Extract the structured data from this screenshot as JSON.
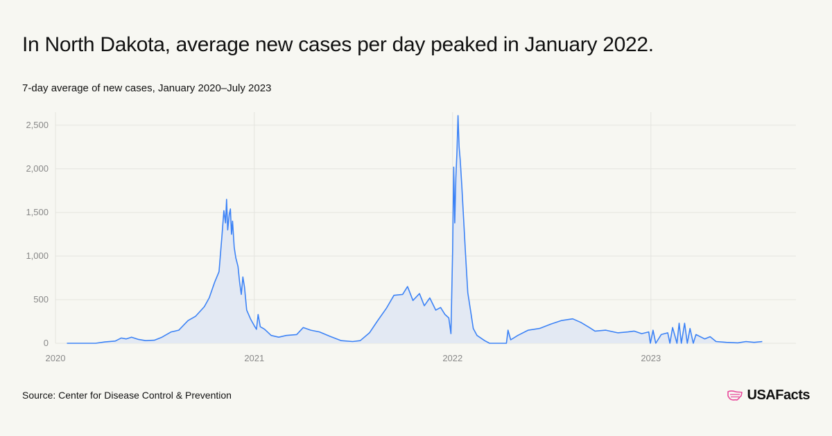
{
  "header": {
    "title": "In North Dakota, average new cases per day peaked in January 2022.",
    "subtitle": "7-day average of new cases, January 2020–July 2023"
  },
  "footer": {
    "source": "Source: Center for Disease Control & Prevention",
    "logo_text": "USAFacts",
    "logo_icon": "us-map-flag-icon"
  },
  "colors": {
    "line": "#3b82f6",
    "area": "#e3e9f3",
    "grid": "#e4e4df",
    "logo_accent": "#e8479a"
  },
  "chart_data": {
    "type": "area",
    "title": "",
    "xlabel": "",
    "ylabel": "",
    "ylim": [
      0,
      2650
    ],
    "xlim": [
      "2020-01-01",
      "2023-09-25"
    ],
    "grid": true,
    "legend": "none",
    "y_ticks": [
      {
        "value": 0,
        "label": "0"
      },
      {
        "value": 500,
        "label": "500"
      },
      {
        "value": 1000,
        "label": "1,000"
      },
      {
        "value": 1500,
        "label": "1,500"
      },
      {
        "value": 2000,
        "label": "2,000"
      },
      {
        "value": 2500,
        "label": "2,500"
      }
    ],
    "x_ticks": [
      {
        "value": "2020-01-01",
        "label": "2020"
      },
      {
        "value": "2021-01-01",
        "label": "2021"
      },
      {
        "value": "2022-01-01",
        "label": "2022"
      },
      {
        "value": "2023-01-01",
        "label": "2023"
      }
    ],
    "series": [
      {
        "name": "",
        "points": [
          [
            "2020-01-22",
            0
          ],
          [
            "2020-03-15",
            0
          ],
          [
            "2020-04-01",
            15
          ],
          [
            "2020-04-20",
            25
          ],
          [
            "2020-05-01",
            60
          ],
          [
            "2020-05-10",
            50
          ],
          [
            "2020-05-20",
            70
          ],
          [
            "2020-06-01",
            45
          ],
          [
            "2020-06-15",
            30
          ],
          [
            "2020-07-01",
            35
          ],
          [
            "2020-07-15",
            70
          ],
          [
            "2020-08-01",
            130
          ],
          [
            "2020-08-15",
            150
          ],
          [
            "2020-09-01",
            260
          ],
          [
            "2020-09-15",
            310
          ],
          [
            "2020-10-01",
            420
          ],
          [
            "2020-10-10",
            520
          ],
          [
            "2020-10-20",
            700
          ],
          [
            "2020-10-28",
            820
          ],
          [
            "2020-11-02",
            1200
          ],
          [
            "2020-11-06",
            1520
          ],
          [
            "2020-11-09",
            1380
          ],
          [
            "2020-11-11",
            1650
          ],
          [
            "2020-11-13",
            1300
          ],
          [
            "2020-11-16",
            1480
          ],
          [
            "2020-11-18",
            1540
          ],
          [
            "2020-11-20",
            1250
          ],
          [
            "2020-11-22",
            1400
          ],
          [
            "2020-11-25",
            1100
          ],
          [
            "2020-11-28",
            980
          ],
          [
            "2020-12-02",
            880
          ],
          [
            "2020-12-05",
            700
          ],
          [
            "2020-12-08",
            560
          ],
          [
            "2020-12-11",
            760
          ],
          [
            "2020-12-14",
            640
          ],
          [
            "2020-12-18",
            380
          ],
          [
            "2020-12-25",
            280
          ],
          [
            "2021-01-01",
            200
          ],
          [
            "2021-01-05",
            160
          ],
          [
            "2021-01-08",
            330
          ],
          [
            "2021-01-12",
            190
          ],
          [
            "2021-01-20",
            160
          ],
          [
            "2021-02-01",
            90
          ],
          [
            "2021-02-15",
            70
          ],
          [
            "2021-03-01",
            90
          ],
          [
            "2021-03-20",
            100
          ],
          [
            "2021-04-01",
            180
          ],
          [
            "2021-04-15",
            150
          ],
          [
            "2021-05-01",
            130
          ],
          [
            "2021-05-20",
            80
          ],
          [
            "2021-06-10",
            30
          ],
          [
            "2021-07-01",
            20
          ],
          [
            "2021-07-15",
            30
          ],
          [
            "2021-08-01",
            120
          ],
          [
            "2021-08-15",
            250
          ],
          [
            "2021-09-01",
            400
          ],
          [
            "2021-09-15",
            550
          ],
          [
            "2021-10-01",
            560
          ],
          [
            "2021-10-10",
            650
          ],
          [
            "2021-10-20",
            490
          ],
          [
            "2021-11-01",
            570
          ],
          [
            "2021-11-10",
            430
          ],
          [
            "2021-11-20",
            520
          ],
          [
            "2021-12-01",
            380
          ],
          [
            "2021-12-10",
            410
          ],
          [
            "2021-12-18",
            330
          ],
          [
            "2021-12-25",
            290
          ],
          [
            "2021-12-29",
            110
          ],
          [
            "2022-01-01",
            1050
          ],
          [
            "2022-01-03",
            2020
          ],
          [
            "2022-01-05",
            1380
          ],
          [
            "2022-01-07",
            1900
          ],
          [
            "2022-01-09",
            2200
          ],
          [
            "2022-01-11",
            2610
          ],
          [
            "2022-01-13",
            2250
          ],
          [
            "2022-01-15",
            2100
          ],
          [
            "2022-01-18",
            1800
          ],
          [
            "2022-01-21",
            1450
          ],
          [
            "2022-01-25",
            1000
          ],
          [
            "2022-01-29",
            580
          ],
          [
            "2022-02-03",
            380
          ],
          [
            "2022-02-08",
            170
          ],
          [
            "2022-02-15",
            90
          ],
          [
            "2022-03-01",
            30
          ],
          [
            "2022-03-10",
            0
          ],
          [
            "2022-04-10",
            0
          ],
          [
            "2022-04-13",
            150
          ],
          [
            "2022-04-18",
            40
          ],
          [
            "2022-05-01",
            90
          ],
          [
            "2022-05-20",
            150
          ],
          [
            "2022-06-10",
            170
          ],
          [
            "2022-07-01",
            220
          ],
          [
            "2022-07-20",
            260
          ],
          [
            "2022-08-10",
            280
          ],
          [
            "2022-08-25",
            240
          ],
          [
            "2022-09-10",
            180
          ],
          [
            "2022-09-20",
            140
          ],
          [
            "2022-10-10",
            150
          ],
          [
            "2022-11-01",
            120
          ],
          [
            "2022-11-20",
            130
          ],
          [
            "2022-12-01",
            140
          ],
          [
            "2022-12-15",
            110
          ],
          [
            "2022-12-28",
            130
          ],
          [
            "2022-12-31",
            0
          ],
          [
            "2023-01-05",
            150
          ],
          [
            "2023-01-10",
            0
          ],
          [
            "2023-01-20",
            100
          ],
          [
            "2023-02-01",
            120
          ],
          [
            "2023-02-05",
            0
          ],
          [
            "2023-02-10",
            180
          ],
          [
            "2023-02-18",
            0
          ],
          [
            "2023-02-22",
            230
          ],
          [
            "2023-02-26",
            0
          ],
          [
            "2023-03-04",
            230
          ],
          [
            "2023-03-09",
            0
          ],
          [
            "2023-03-14",
            170
          ],
          [
            "2023-03-20",
            0
          ],
          [
            "2023-03-25",
            100
          ],
          [
            "2023-04-10",
            50
          ],
          [
            "2023-04-20",
            75
          ],
          [
            "2023-05-01",
            20
          ],
          [
            "2023-05-20",
            10
          ],
          [
            "2023-06-10",
            5
          ],
          [
            "2023-06-25",
            20
          ],
          [
            "2023-07-10",
            10
          ],
          [
            "2023-07-25",
            20
          ]
        ]
      }
    ]
  }
}
